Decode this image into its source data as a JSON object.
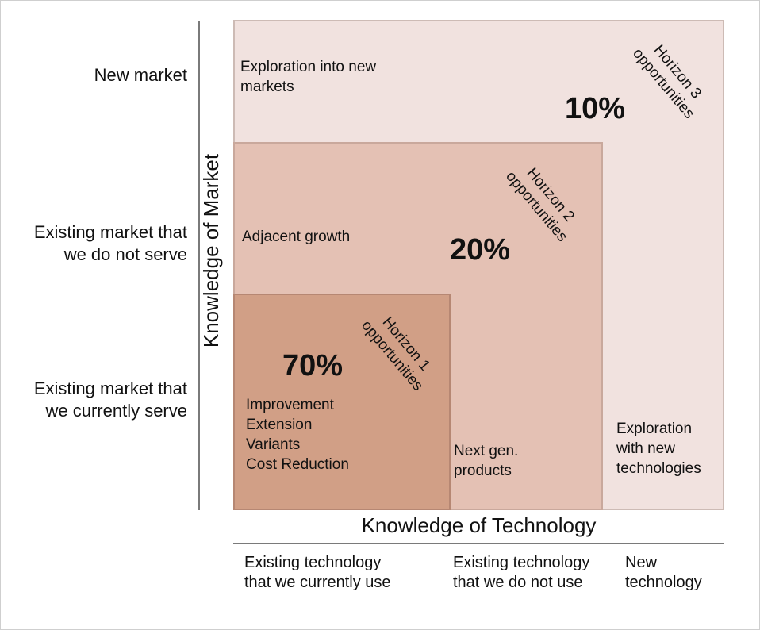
{
  "axes": {
    "x_title": "Knowledge of Technology",
    "y_title": "Knowledge of Market",
    "y_categories": [
      "New market",
      "Existing market that\nwe do not serve",
      "Existing market that\nwe currently serve"
    ],
    "x_categories": [
      "Existing technology\nthat we currently use",
      "Existing technology\nthat we do not use",
      "New\ntechnology"
    ]
  },
  "horizons": [
    {
      "label": "Horizon 1\nopportunities",
      "percent": "70%",
      "description": "Improvement\nExtension\nVariants\nCost Reduction",
      "color": "#d19f86"
    },
    {
      "label": "Horizon 2\nopportunities",
      "percent": "20%",
      "description_market": "Adjacent growth",
      "description_tech": "Next gen.\nproducts",
      "color": "#e4c1b4"
    },
    {
      "label": "Horizon 3\nopportunities",
      "percent": "10%",
      "description_market": "Exploration into new\nmarkets",
      "description_tech": "Exploration\nwith new\ntechnologies",
      "color": "#f1e2df"
    }
  ]
}
